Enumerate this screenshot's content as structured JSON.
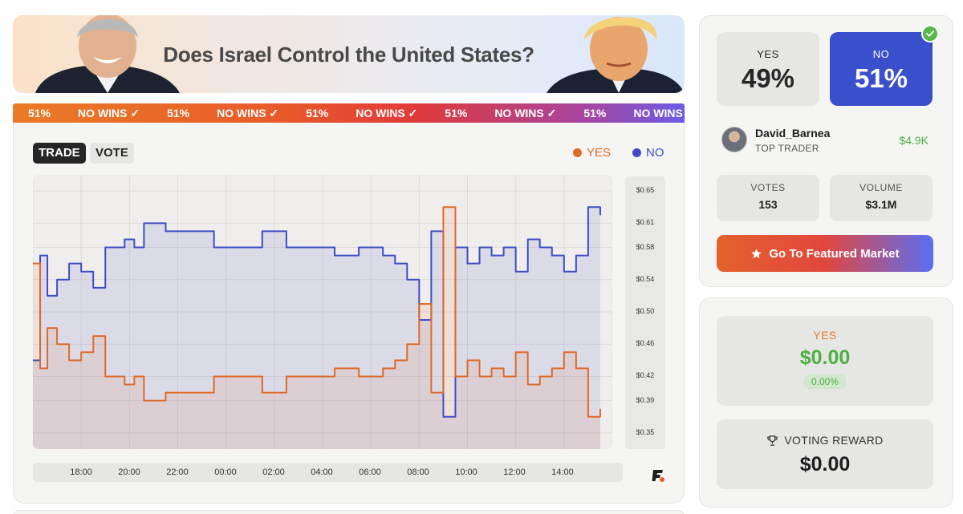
{
  "banner": {
    "title": "Does Israel Control the United States?"
  },
  "ticker": [
    {
      "text": "51%"
    },
    {
      "text": "NO WINS ✓"
    },
    {
      "text": "51%"
    },
    {
      "text": "NO WINS ✓"
    },
    {
      "text": "51%"
    },
    {
      "text": "NO WINS ✓"
    },
    {
      "text": "51%"
    },
    {
      "text": "NO WINS ✓"
    },
    {
      "text": "51%"
    },
    {
      "text": "NO WINS ✓"
    }
  ],
  "chart_toggle": {
    "trade": "TRADE",
    "vote": "VOTE"
  },
  "chart_data": {
    "type": "line",
    "title": "",
    "legend": [
      {
        "name": "YES",
        "color": "#e06a28"
      },
      {
        "name": "NO",
        "color": "#3f4dc4"
      }
    ],
    "x_ticks": [
      "18:00",
      "20:00",
      "22:00",
      "00:00",
      "02:00",
      "04:00",
      "06:00",
      "08:00",
      "10:00",
      "12:00",
      "14:00"
    ],
    "y_ticks": [
      "$0.65",
      "$0.61",
      "$0.58",
      "$0.54",
      "$0.50",
      "$0.46",
      "$0.42",
      "$0.39",
      "$0.35"
    ],
    "ylim": [
      0.33,
      0.67
    ],
    "series": [
      {
        "name": "NO",
        "color": "#3f4dc4",
        "hours": [
          0,
          0.3,
          0.6,
          1.0,
          1.5,
          2.0,
          2.5,
          3.0,
          3.3,
          3.8,
          4.2,
          4.6,
          5.0,
          5.5,
          6.0,
          6.5,
          7.0,
          7.5,
          8.0,
          8.5,
          9.0,
          9.5,
          10.0,
          10.5,
          11.0,
          11.5,
          12.0,
          12.5,
          13.0,
          13.5,
          14.0,
          14.5,
          15.0,
          15.5,
          16.0,
          16.5,
          17.0,
          17.5,
          18.0,
          18.5,
          19.0,
          19.5,
          20.0,
          20.5,
          21.0,
          21.5,
          22.0,
          22.5,
          23.0,
          23.5
        ],
        "values": [
          0.44,
          0.57,
          0.52,
          0.54,
          0.56,
          0.55,
          0.53,
          0.58,
          0.58,
          0.59,
          0.58,
          0.61,
          0.61,
          0.6,
          0.6,
          0.6,
          0.6,
          0.58,
          0.58,
          0.58,
          0.58,
          0.6,
          0.6,
          0.58,
          0.58,
          0.58,
          0.58,
          0.57,
          0.57,
          0.58,
          0.58,
          0.57,
          0.56,
          0.54,
          0.49,
          0.6,
          0.37,
          0.58,
          0.56,
          0.58,
          0.57,
          0.58,
          0.55,
          0.59,
          0.58,
          0.57,
          0.55,
          0.57,
          0.63,
          0.62
        ]
      },
      {
        "name": "YES",
        "color": "#e06a28",
        "hours": [
          0,
          0.3,
          0.6,
          1.0,
          1.5,
          2.0,
          2.5,
          3.0,
          3.3,
          3.8,
          4.2,
          4.6,
          5.0,
          5.5,
          6.0,
          6.5,
          7.0,
          7.5,
          8.0,
          8.5,
          9.0,
          9.5,
          10.0,
          10.5,
          11.0,
          11.5,
          12.0,
          12.5,
          13.0,
          13.5,
          14.0,
          14.5,
          15.0,
          15.5,
          16.0,
          16.5,
          17.0,
          17.5,
          18.0,
          18.5,
          19.0,
          19.5,
          20.0,
          20.5,
          21.0,
          21.5,
          22.0,
          22.5,
          23.0,
          23.5
        ],
        "values": [
          0.56,
          0.43,
          0.48,
          0.46,
          0.44,
          0.45,
          0.47,
          0.42,
          0.42,
          0.41,
          0.42,
          0.39,
          0.39,
          0.4,
          0.4,
          0.4,
          0.4,
          0.42,
          0.42,
          0.42,
          0.42,
          0.4,
          0.4,
          0.42,
          0.42,
          0.42,
          0.42,
          0.43,
          0.43,
          0.42,
          0.42,
          0.43,
          0.44,
          0.46,
          0.51,
          0.4,
          0.63,
          0.42,
          0.44,
          0.42,
          0.43,
          0.42,
          0.45,
          0.41,
          0.42,
          0.43,
          0.45,
          0.43,
          0.37,
          0.38
        ]
      }
    ]
  },
  "prices": {
    "yes_label": "YES",
    "yes_value": "49%",
    "no_label": "NO",
    "no_value": "51%"
  },
  "trader": {
    "name": "David_Barnea",
    "role": "TOP TRADER",
    "amount": "$4.9K"
  },
  "stats": {
    "votes_label": "VOTES",
    "votes_value": "153",
    "volume_label": "VOLUME",
    "volume_value": "$3.1M"
  },
  "featured": {
    "label": "Go To Featured Market"
  },
  "position": {
    "yes_label": "YES",
    "yes_amount": "$0.00",
    "yes_pct": "0.00%"
  },
  "reward": {
    "label": "VOTING REWARD",
    "amount": "$0.00"
  },
  "colors": {
    "yes": "#e06a28",
    "no": "#3f4dc4",
    "green": "#4db043"
  }
}
